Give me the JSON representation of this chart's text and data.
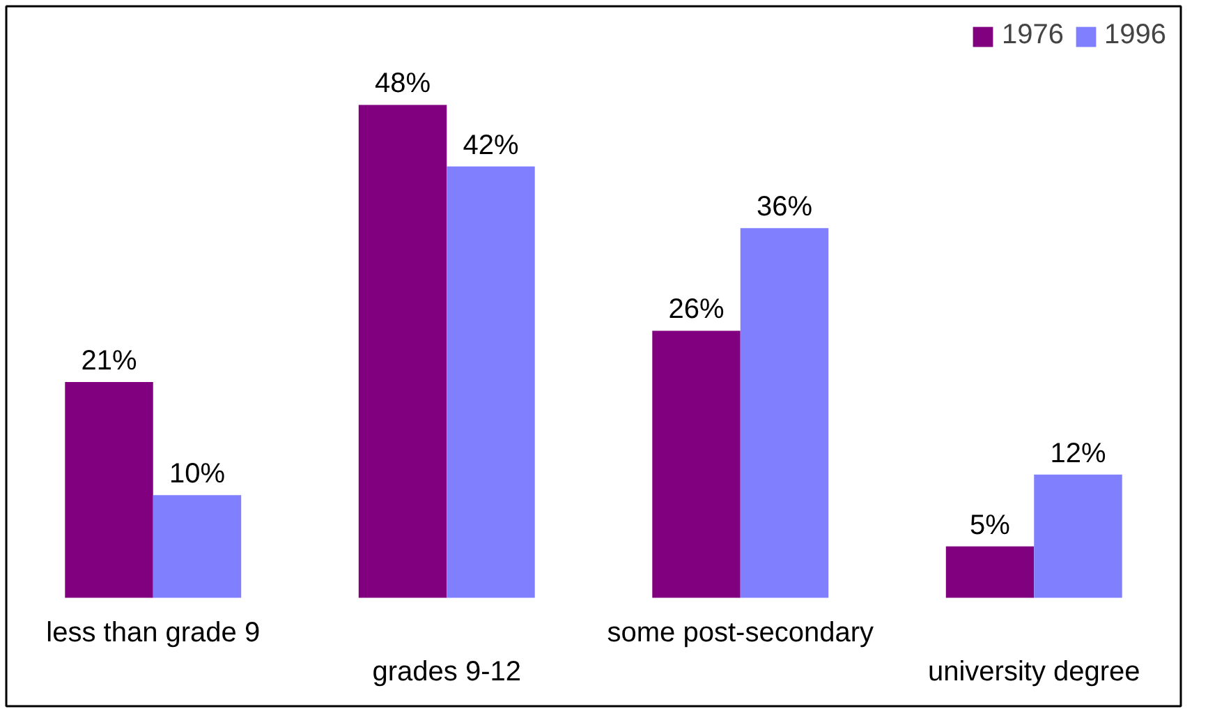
{
  "chart_data": {
    "type": "bar",
    "categories": [
      "less than grade 9",
      "grades 9-12",
      "some post-secondary",
      "university degree"
    ],
    "series": [
      {
        "name": "1976",
        "color": "#800080",
        "values": [
          21,
          48,
          26,
          5
        ],
        "value_labels": [
          "21%",
          "48%",
          "26%",
          "5%"
        ]
      },
      {
        "name": "1996",
        "color": "#8080ff",
        "values": [
          10,
          42,
          36,
          12
        ],
        "value_labels": [
          "10%",
          "42%",
          "36%",
          "12%"
        ]
      }
    ],
    "legend": "top right",
    "grid": false
  }
}
